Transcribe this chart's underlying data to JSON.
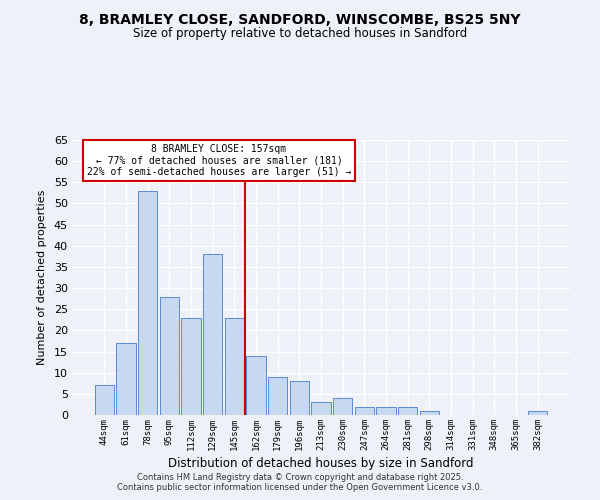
{
  "title": "8, BRAMLEY CLOSE, SANDFORD, WINSCOMBE, BS25 5NY",
  "subtitle": "Size of property relative to detached houses in Sandford",
  "xlabel": "Distribution of detached houses by size in Sandford",
  "ylabel": "Number of detached properties",
  "bin_labels": [
    "44sqm",
    "61sqm",
    "78sqm",
    "95sqm",
    "112sqm",
    "129sqm",
    "145sqm",
    "162sqm",
    "179sqm",
    "196sqm",
    "213sqm",
    "230sqm",
    "247sqm",
    "264sqm",
    "281sqm",
    "298sqm",
    "314sqm",
    "331sqm",
    "348sqm",
    "365sqm",
    "382sqm"
  ],
  "bar_heights": [
    7,
    17,
    53,
    28,
    23,
    38,
    23,
    14,
    9,
    8,
    3,
    4,
    2,
    2,
    2,
    1,
    0,
    0,
    0,
    0,
    1
  ],
  "bar_color": "#c6d9f1",
  "bar_edgecolor": "#5b8bd0",
  "vline_x_idx": 7,
  "vline_color": "#cc0000",
  "annotation_title": "8 BRAMLEY CLOSE: 157sqm",
  "annotation_line1": "← 77% of detached houses are smaller (181)",
  "annotation_line2": "22% of semi-detached houses are larger (51) →",
  "annotation_box_edgecolor": "#cc0000",
  "ylim": [
    0,
    65
  ],
  "yticks": [
    0,
    5,
    10,
    15,
    20,
    25,
    30,
    35,
    40,
    45,
    50,
    55,
    60,
    65
  ],
  "footer1": "Contains HM Land Registry data © Crown copyright and database right 2025.",
  "footer2": "Contains public sector information licensed under the Open Government Licence v3.0.",
  "bg_color": "#eef2f8",
  "plot_bg_color": "#eef2f8"
}
